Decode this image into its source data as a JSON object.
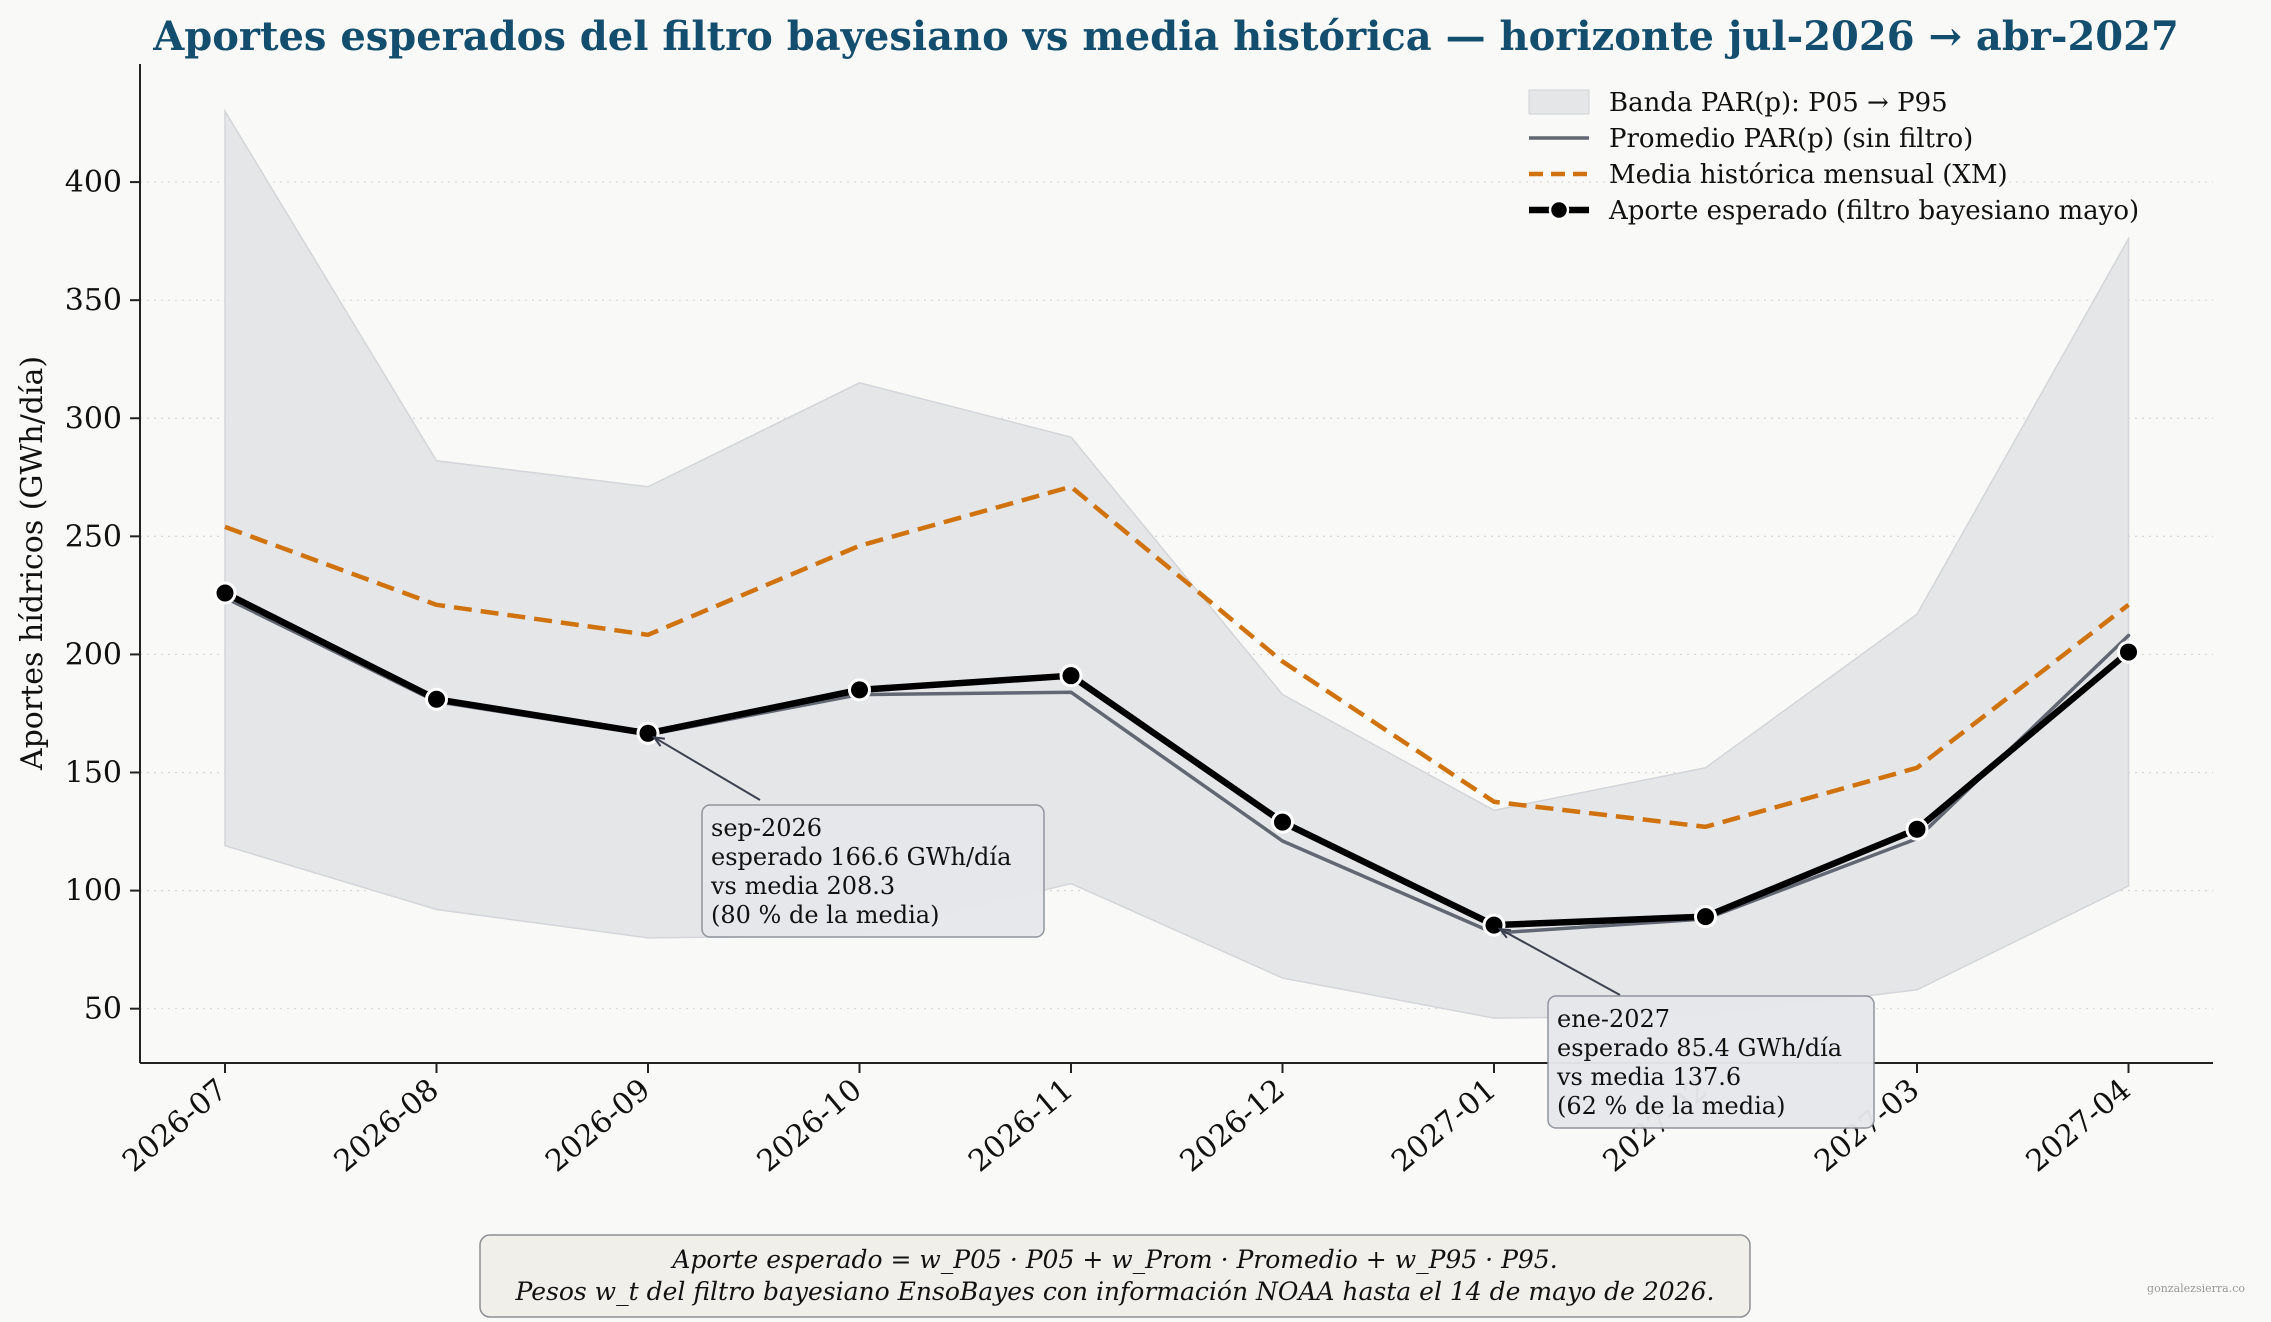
{
  "chart_data": {
    "type": "line",
    "title": "Aportes esperados del filtro bayesiano vs media histórica — horizonte jul-2026 → abr-2027",
    "ylabel": "Aportes hídricos (GWh/día)",
    "xlabel": "",
    "categories": [
      "2026-07",
      "2026-08",
      "2026-09",
      "2026-10",
      "2026-11",
      "2026-12",
      "2027-01",
      "2027-02",
      "2027-03",
      "2027-04"
    ],
    "ylim": [
      27,
      450
    ],
    "yticks": [
      50,
      100,
      150,
      200,
      250,
      300,
      350,
      400
    ],
    "grid": "horizontal-dotted",
    "legend_position": "top-right",
    "band": {
      "name": "Banda PAR(p): P05 → P95",
      "p05": [
        119,
        92,
        80,
        81,
        103,
        63,
        46,
        47,
        58,
        102
      ],
      "p95": [
        430,
        282,
        271,
        315,
        292,
        183,
        134,
        152,
        217,
        376
      ],
      "color": "#e5e6e8"
    },
    "series": [
      {
        "name": "Promedio PAR(p) (sin filtro)",
        "values": [
          224,
          180,
          166,
          183,
          184,
          121,
          82,
          88,
          122,
          208
        ],
        "color": "#616773",
        "style": "solid-thin"
      },
      {
        "name": "Media histórica mensual (XM)",
        "values": [
          254,
          221,
          208.3,
          246,
          271,
          197,
          137.6,
          127,
          152,
          221
        ],
        "color": "#d0730f",
        "style": "dashed"
      },
      {
        "name": "Aporte esperado (filtro bayesiano mayo)",
        "values": [
          226,
          181,
          166.6,
          185,
          191,
          129,
          85.4,
          89,
          126,
          201
        ],
        "color": "#000000",
        "style": "solid-thick-markers"
      }
    ],
    "annotations": [
      {
        "index": 2,
        "lines": [
          "sep-2026",
          "esperado 166.6 GWh/día",
          "vs media 208.3",
          "(80 % de la media)"
        ]
      },
      {
        "index": 6,
        "lines": [
          "ene-2027",
          "esperado 85.4 GWh/día",
          "vs media 137.6",
          "(62 % de la media)"
        ]
      }
    ],
    "footnote": [
      "Aporte esperado = w_P05 · P05 + w_Prom · Promedio + w_P95 · P95.",
      "Pesos w_t del filtro bayesiano EnsoBayes con información NOAA hasta el 14 de mayo de 2026."
    ],
    "watermark": "gonzalezsierra.co"
  }
}
